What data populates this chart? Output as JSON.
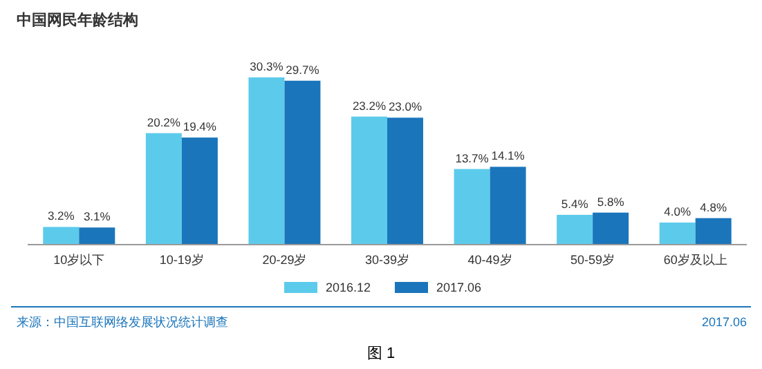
{
  "chart_data": {
    "type": "bar",
    "title": "中国网民年龄结构",
    "categories": [
      "10岁以下",
      "10-19岁",
      "20-29岁",
      "30-39岁",
      "40-49岁",
      "50-59岁",
      "60岁及以上"
    ],
    "series": [
      {
        "name": "2016.12",
        "color": "#5ccbeb",
        "values": [
          3.2,
          20.2,
          30.3,
          23.2,
          13.7,
          5.4,
          4.0
        ],
        "value_labels": [
          "3.2%",
          "20.2%",
          "30.3%",
          "23.2%",
          "13.7%",
          "5.4%",
          "4.0%"
        ]
      },
      {
        "name": "2017.06",
        "color": "#1b75bb",
        "values": [
          3.1,
          19.4,
          29.7,
          23.0,
          14.1,
          5.8,
          4.8
        ],
        "value_labels": [
          "3.1%",
          "19.4%",
          "29.7%",
          "23.0%",
          "14.1%",
          "5.8%",
          "4.8%"
        ]
      }
    ],
    "legend": "bottom",
    "annotations": [
      "来源：中国互联网络发展状况统计调查",
      "2017.06",
      "图 1"
    ]
  }
}
